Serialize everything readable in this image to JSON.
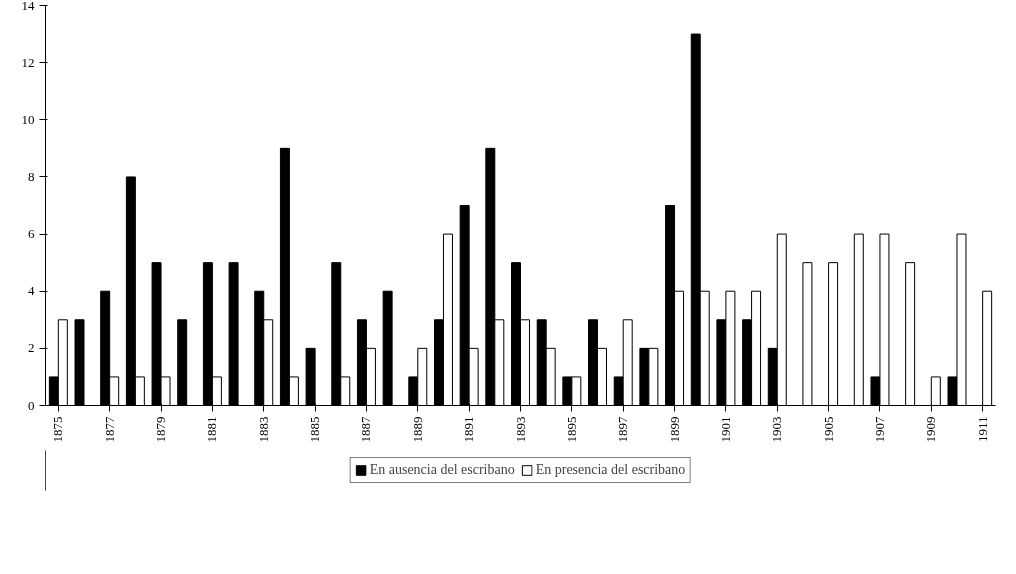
{
  "chart_data": {
    "type": "bar",
    "categories": [
      "1875",
      null,
      "1877",
      null,
      "1879",
      null,
      "1881",
      null,
      "1883",
      null,
      "1885",
      null,
      "1887",
      null,
      "1889",
      null,
      "1891",
      null,
      "1893",
      null,
      "1895",
      null,
      "1897",
      null,
      "1899",
      null,
      "1901",
      null,
      "1903",
      null,
      "1905",
      null,
      "1907",
      null,
      "1909",
      null,
      "1911"
    ],
    "series": [
      {
        "name": "En ausencia del escribano",
        "color": "#000000",
        "values": [
          1,
          3,
          4,
          8,
          5,
          3,
          5,
          5,
          4,
          9,
          2,
          5,
          3,
          4,
          1,
          3,
          7,
          9,
          5,
          3,
          1,
          3,
          1,
          2,
          7,
          13,
          3,
          3,
          2,
          0,
          0,
          0,
          1,
          0,
          0,
          1,
          0
        ]
      },
      {
        "name": "En presencia del escribano",
        "color": "#ffffff",
        "values": [
          3,
          0,
          1,
          1,
          1,
          0,
          1,
          0,
          3,
          1,
          0,
          1,
          2,
          0,
          2,
          6,
          2,
          3,
          3,
          2,
          1,
          2,
          3,
          2,
          4,
          4,
          4,
          4,
          6,
          5,
          5,
          6,
          6,
          5,
          1,
          6,
          4
        ]
      }
    ],
    "ylim": [
      0,
      14
    ],
    "yticks": [
      0,
      2,
      4,
      6,
      8,
      10,
      12,
      14
    ],
    "grid": false,
    "legend": "bottom"
  }
}
